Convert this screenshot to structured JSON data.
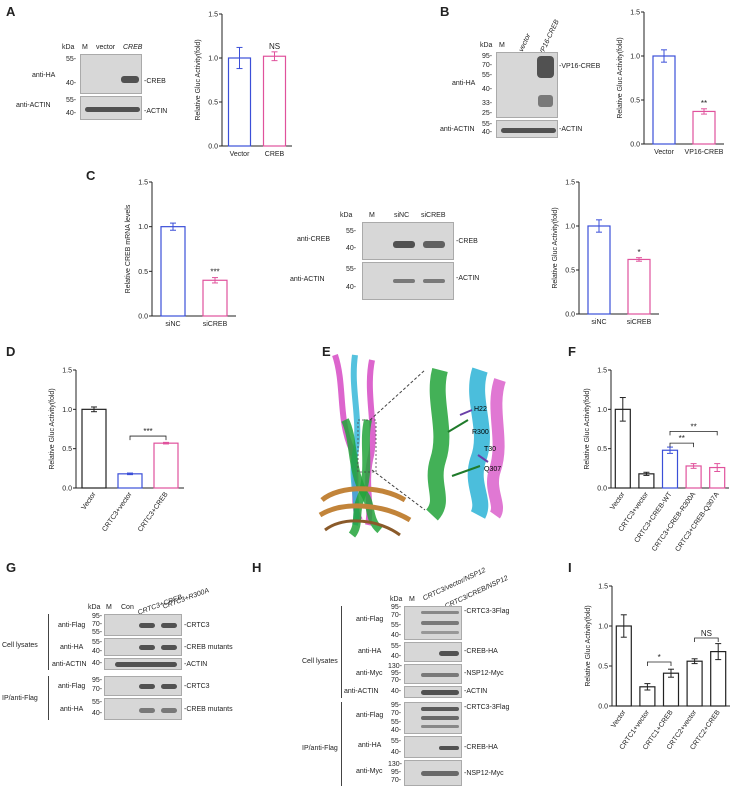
{
  "letters": {
    "A": "A",
    "B": "B",
    "C": "C",
    "D": "D",
    "E": "E",
    "F": "F",
    "G": "G",
    "H": "H",
    "I": "I"
  },
  "common": {
    "kda": "kDa",
    "m": "M",
    "actin": "ACTIN",
    "anti_actin": "anti-ACTIN",
    "anti_ha": "anti-HA",
    "anti_flag": "anti-Flag",
    "anti_myc": "anti-Myc",
    "cell_lysates": "Cell lysates",
    "ip": "IP/anti-Flag"
  },
  "A": {
    "lanes": [
      "vector",
      "CREB"
    ],
    "markers_top": [
      "55-",
      "40-"
    ],
    "markers_bot": [
      "55-",
      "40-"
    ],
    "band_label": "-CREB",
    "actin_label": "-ACTIN",
    "ylabel": "Relative Gluc Activity(fold)",
    "categories": [
      "Vector",
      "CREB"
    ],
    "values": [
      1.0,
      1.02
    ],
    "errors": [
      0.12,
      0.05
    ],
    "sig": "NS",
    "ylim": [
      0,
      1.5
    ],
    "ticks": [
      "0.0",
      "0.5",
      "1.0",
      "1.5"
    ]
  },
  "B": {
    "lanes": [
      "vector",
      "VP16-CREB"
    ],
    "markers_top": [
      "95-",
      "70-",
      "55-",
      "40-",
      "33-",
      "25-"
    ],
    "markers_bot": [
      "55-",
      "40-"
    ],
    "band_label": "-VP16-CREB",
    "actin_label": "-ACTIN",
    "ylabel": "Relative Gluc Activity(fold)",
    "categories": [
      "Vector",
      "VP16-CREB"
    ],
    "values": [
      1.0,
      0.37
    ],
    "errors": [
      0.07,
      0.03
    ],
    "sig": "**",
    "ylim": [
      0,
      1.5
    ],
    "ticks": [
      "0.0",
      "0.5",
      "1.0",
      "1.5"
    ]
  },
  "C": {
    "mrna_ylabel": "Relative CREB mRNA levels",
    "categories": [
      "siNC",
      "siCREB"
    ],
    "mrna_values": [
      1.0,
      0.4
    ],
    "mrna_errors": [
      0.04,
      0.03
    ],
    "mrna_sig": "***",
    "mrna_ticks": [
      "0.0",
      "0.5",
      "1.0",
      "1.5"
    ],
    "lanes": [
      "siNC",
      "siCREB"
    ],
    "anti_creb": "anti-CREB",
    "markers_top": [
      "55-",
      "40-"
    ],
    "markers_bot": [
      "55-",
      "40-"
    ],
    "band_label": "-CREB",
    "actin_label": "-ACTIN",
    "gluc_ylabel": "Relative Gluc Activity(fold)",
    "gluc_values": [
      1.0,
      0.62
    ],
    "gluc_errors": [
      0.07,
      0.02
    ],
    "gluc_sig": "*",
    "gluc_ticks": [
      "0.0",
      "0.5",
      "1.0",
      "1.5"
    ]
  },
  "D": {
    "ylabel": "Relative Gluc Activity(fold)",
    "categories": [
      "Vector",
      "CRTC3+vector",
      "CRTC3+CREB"
    ],
    "values": [
      1.0,
      0.18,
      0.57
    ],
    "errors": [
      0.03,
      0.01,
      0.01
    ],
    "sig": "***",
    "ticks": [
      "0.0",
      "0.5",
      "1.0",
      "1.5"
    ]
  },
  "E": {
    "labels": [
      "H22",
      "R300",
      "T30",
      "Q307"
    ]
  },
  "F": {
    "ylabel": "Relative Gluc Activity(fold)",
    "categories": [
      "Vector",
      "CRTC3+vector",
      "CRTC3+CREB-WT",
      "CRTC3+CREB-R300A",
      "CRTC3+CREB-Q307A"
    ],
    "values": [
      1.0,
      0.18,
      0.48,
      0.28,
      0.26
    ],
    "errors": [
      0.15,
      0.02,
      0.04,
      0.03,
      0.05
    ],
    "sig": [
      "**",
      "**"
    ],
    "ticks": [
      "0.0",
      "0.5",
      "1.0",
      "1.5"
    ]
  },
  "G": {
    "lanes": [
      "Con",
      "CRTC3+CREB",
      "CRTC3+R300A"
    ],
    "rows": [
      {
        "ab": "anti-Flag",
        "markers": [
          "95-",
          "70-",
          "55-"
        ],
        "label": "-CRTC3"
      },
      {
        "ab": "anti-HA",
        "markers": [
          "55-",
          "40-"
        ],
        "label": "-CREB mutants"
      },
      {
        "ab": "anti-ACTIN",
        "markers": [
          "40-"
        ],
        "label": "-ACTIN"
      },
      {
        "ab": "anti-Flag",
        "markers": [
          "95-",
          "70-"
        ],
        "label": "-CRTC3"
      },
      {
        "ab": "anti-HA",
        "markers": [
          "55-",
          "40-"
        ],
        "label": "-CREB mutants"
      }
    ]
  },
  "H": {
    "lanes": [
      "CRTC3/vector/NSP12",
      "CRTC3/CREB/NSP12"
    ],
    "rows": [
      {
        "ab": "anti-Flag",
        "markers": [
          "95-",
          "70-",
          "55-",
          "40-"
        ],
        "label": "-CRTC3-3Flag"
      },
      {
        "ab": "anti-HA",
        "markers": [
          "55-",
          "40-"
        ],
        "label": "-CREB-HA"
      },
      {
        "ab": "anti-Myc",
        "markers": [
          "130-",
          "95-",
          "70-"
        ],
        "label": "-NSP12-Myc"
      },
      {
        "ab": "anti-ACTIN",
        "markers": [
          "40-"
        ],
        "label": "-ACTIN"
      },
      {
        "ab": "anti-Flag",
        "markers": [
          "95-",
          "70-",
          "55-",
          "40-"
        ],
        "label": "-CRTC3-3Flag"
      },
      {
        "ab": "anti-HA",
        "markers": [
          "55-",
          "40-"
        ],
        "label": "-CREB-HA"
      },
      {
        "ab": "anti-Myc",
        "markers": [
          "130-",
          "95-",
          "70-"
        ],
        "label": "-NSP12-Myc"
      }
    ]
  },
  "I": {
    "ylabel": "Relative Gluc Activity(fold)",
    "categories": [
      "Vector",
      "CRTC1+vector",
      "CRTC1+CREB",
      "CRTC2+vector",
      "CRTC2+CREB"
    ],
    "values": [
      1.0,
      0.24,
      0.41,
      0.56,
      0.68
    ],
    "errors": [
      0.14,
      0.04,
      0.05,
      0.03,
      0.1
    ],
    "sig": [
      "*",
      "NS"
    ],
    "ticks": [
      "0.0",
      "0.5",
      "1.0",
      "1.5"
    ]
  },
  "colors": {
    "blue": "#3b4fd8",
    "pink": "#e0529c",
    "black": "#222222"
  },
  "chart_data": [
    {
      "type": "bar",
      "panel": "A",
      "categories": [
        "Vector",
        "CREB"
      ],
      "values": [
        1.0,
        1.02
      ],
      "ylabel": "Relative Gluc Activity(fold)",
      "ylim": [
        0,
        1.5
      ]
    },
    {
      "type": "bar",
      "panel": "B",
      "categories": [
        "Vector",
        "VP16-CREB"
      ],
      "values": [
        1.0,
        0.37
      ],
      "ylabel": "Relative Gluc Activity(fold)",
      "ylim": [
        0,
        1.5
      ]
    },
    {
      "type": "bar",
      "panel": "C-mRNA",
      "categories": [
        "siNC",
        "siCREB"
      ],
      "values": [
        1.0,
        0.4
      ],
      "ylabel": "Relative CREB mRNA levels",
      "ylim": [
        0,
        1.5
      ]
    },
    {
      "type": "bar",
      "panel": "C-Gluc",
      "categories": [
        "siNC",
        "siCREB"
      ],
      "values": [
        1.0,
        0.62
      ],
      "ylabel": "Relative Gluc Activity(fold)",
      "ylim": [
        0,
        1.5
      ]
    },
    {
      "type": "bar",
      "panel": "D",
      "categories": [
        "Vector",
        "CRTC3+vector",
        "CRTC3+CREB"
      ],
      "values": [
        1.0,
        0.18,
        0.57
      ],
      "ylabel": "Relative Gluc Activity(fold)",
      "ylim": [
        0,
        1.5
      ]
    },
    {
      "type": "bar",
      "panel": "F",
      "categories": [
        "Vector",
        "CRTC3+vector",
        "CRTC3+CREB-WT",
        "CRTC3+CREB-R300A",
        "CRTC3+CREB-Q307A"
      ],
      "values": [
        1.0,
        0.18,
        0.48,
        0.28,
        0.26
      ],
      "ylabel": "Relative Gluc Activity(fold)",
      "ylim": [
        0,
        1.5
      ]
    },
    {
      "type": "bar",
      "panel": "I",
      "categories": [
        "Vector",
        "CRTC1+vector",
        "CRTC1+CREB",
        "CRTC2+vector",
        "CRTC2+CREB"
      ],
      "values": [
        1.0,
        0.24,
        0.41,
        0.56,
        0.68
      ],
      "ylabel": "Relative Gluc Activity(fold)",
      "ylim": [
        0,
        1.5
      ]
    }
  ]
}
